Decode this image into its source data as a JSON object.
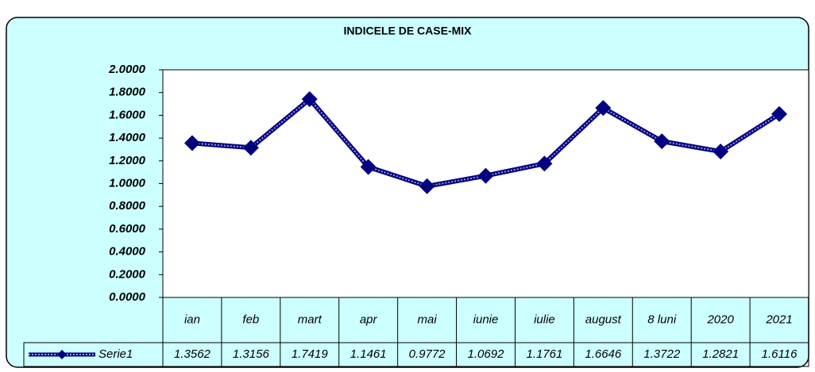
{
  "chart_data": {
    "type": "line",
    "title": "INDICELE DE CASE-MIX",
    "categories": [
      "ian",
      "feb",
      "mart",
      "apr",
      "mai",
      "iunie",
      "iulie",
      "august",
      "8 luni",
      "2020",
      "2021"
    ],
    "series": [
      {
        "name": "Serie1",
        "color": "#000080",
        "values": [
          1.3562,
          1.3156,
          1.7419,
          1.1461,
          0.9772,
          1.0692,
          1.1761,
          1.6646,
          1.3722,
          1.2821,
          1.6116
        ]
      }
    ],
    "ylim": [
      0,
      2
    ],
    "yticks": [
      {
        "value": 0,
        "label": "0.0000"
      },
      {
        "value": 0.2,
        "label": "0.2000"
      },
      {
        "value": 0.4,
        "label": "0.4000"
      },
      {
        "value": 0.6,
        "label": "0.6000"
      },
      {
        "value": 0.8,
        "label": "0.8000"
      },
      {
        "value": 1,
        "label": "1.0000"
      },
      {
        "value": 1.2,
        "label": "1.2000"
      },
      {
        "value": 1.4,
        "label": "1.4000"
      },
      {
        "value": 1.6,
        "label": "1.6000"
      },
      {
        "value": 1.8,
        "label": "1.8000"
      },
      {
        "value": 2,
        "label": "2.0000"
      }
    ],
    "grid": false
  }
}
